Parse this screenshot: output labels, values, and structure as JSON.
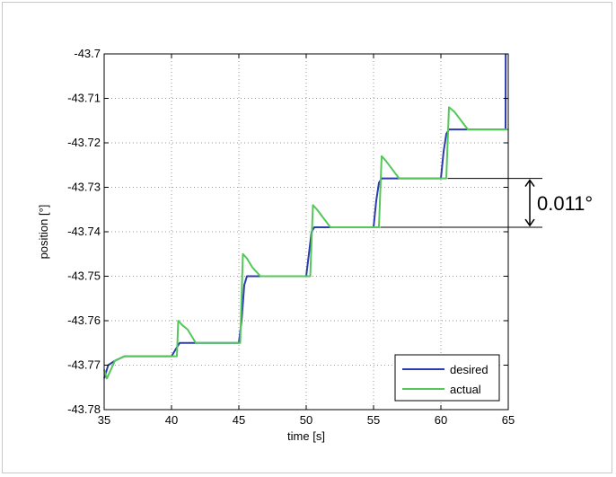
{
  "chart_data": {
    "type": "line",
    "title": "",
    "xlabel": "time [s]",
    "ylabel": "position [°]",
    "xlim": [
      35,
      65
    ],
    "ylim": [
      -43.78,
      -43.7
    ],
    "xticks": [
      35,
      40,
      45,
      50,
      55,
      60,
      65
    ],
    "yticks": [
      -43.7,
      -43.71,
      -43.72,
      -43.73,
      -43.74,
      -43.75,
      -43.76,
      -43.77,
      -43.78
    ],
    "xtick_labels": [
      "35",
      "40",
      "45",
      "50",
      "55",
      "60",
      "65"
    ],
    "ytick_labels": [
      "-43.7",
      "-43.71",
      "-43.72",
      "-43.73",
      "-43.74",
      "-43.75",
      "-43.76",
      "-43.77",
      "-43.78"
    ],
    "grid": true,
    "legend_position": "bottom-right",
    "series": [
      {
        "name": "desired",
        "color": "#2b3bb0",
        "points": [
          [
            35.0,
            -43.773
          ],
          [
            35.3,
            -43.77
          ],
          [
            35.8,
            -43.769
          ],
          [
            36.5,
            -43.768
          ],
          [
            38.0,
            -43.768
          ],
          [
            40.0,
            -43.768
          ],
          [
            40.2,
            -43.767
          ],
          [
            40.4,
            -43.766
          ],
          [
            40.6,
            -43.765
          ],
          [
            41.5,
            -43.765
          ],
          [
            45.0,
            -43.765
          ],
          [
            45.2,
            -43.76
          ],
          [
            45.4,
            -43.752
          ],
          [
            45.6,
            -43.75
          ],
          [
            46.5,
            -43.75
          ],
          [
            50.0,
            -43.75
          ],
          [
            50.2,
            -43.745
          ],
          [
            50.4,
            -43.74
          ],
          [
            50.6,
            -43.739
          ],
          [
            52.0,
            -43.739
          ],
          [
            55.0,
            -43.739
          ],
          [
            55.2,
            -43.733
          ],
          [
            55.4,
            -43.729
          ],
          [
            55.6,
            -43.728
          ],
          [
            57.0,
            -43.728
          ],
          [
            60.0,
            -43.728
          ],
          [
            60.2,
            -43.722
          ],
          [
            60.4,
            -43.718
          ],
          [
            60.6,
            -43.717
          ],
          [
            62.0,
            -43.717
          ],
          [
            64.8,
            -43.717
          ],
          [
            64.81,
            -43.7
          ]
        ]
      },
      {
        "name": "actual",
        "color": "#55c75a",
        "points": [
          [
            35.0,
            -43.771
          ],
          [
            35.2,
            -43.773
          ],
          [
            35.5,
            -43.771
          ],
          [
            35.8,
            -43.769
          ],
          [
            36.5,
            -43.768
          ],
          [
            38.0,
            -43.768
          ],
          [
            40.4,
            -43.768
          ],
          [
            40.5,
            -43.76
          ],
          [
            40.8,
            -43.761
          ],
          [
            41.2,
            -43.762
          ],
          [
            41.8,
            -43.765
          ],
          [
            43.0,
            -43.765
          ],
          [
            45.1,
            -43.765
          ],
          [
            45.3,
            -43.745
          ],
          [
            45.6,
            -43.746
          ],
          [
            46.0,
            -43.748
          ],
          [
            46.6,
            -43.75
          ],
          [
            48.0,
            -43.75
          ],
          [
            50.3,
            -43.75
          ],
          [
            50.5,
            -43.734
          ],
          [
            50.8,
            -43.735
          ],
          [
            51.3,
            -43.737
          ],
          [
            51.8,
            -43.739
          ],
          [
            53.0,
            -43.739
          ],
          [
            55.4,
            -43.739
          ],
          [
            55.6,
            -43.723
          ],
          [
            55.9,
            -43.724
          ],
          [
            56.4,
            -43.726
          ],
          [
            56.9,
            -43.728
          ],
          [
            58.0,
            -43.728
          ],
          [
            60.4,
            -43.728
          ],
          [
            60.6,
            -43.712
          ],
          [
            61.0,
            -43.713
          ],
          [
            61.5,
            -43.715
          ],
          [
            62.0,
            -43.717
          ],
          [
            63.5,
            -43.717
          ],
          [
            65.0,
            -43.717
          ]
        ]
      }
    ],
    "annotations": [
      {
        "type": "double-arrow",
        "x": 60.5,
        "y_from": -43.728,
        "y_to": -43.739,
        "label": "0.011°"
      }
    ]
  }
}
